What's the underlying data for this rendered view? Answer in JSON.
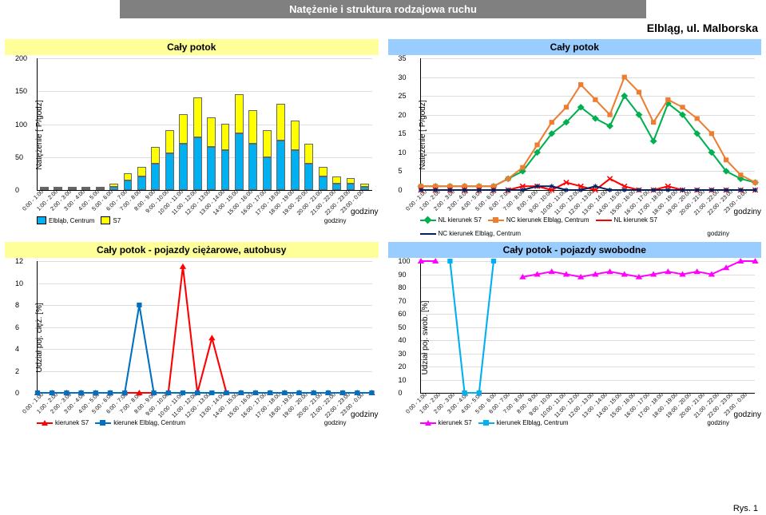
{
  "title": "Natężenie i struktura rodzajowa ruchu",
  "location": "Elbląg, ul. Malborska",
  "footer": "Rys. 1",
  "hours": [
    "0:00 - 1:00",
    "1:00 - 2:00",
    "2:00 - 3:00",
    "3:00 - 4:00",
    "4:00 - 5:00",
    "5:00 - 6:00",
    "6:00 - 7:00",
    "7:00 - 8:00",
    "8:00 - 9:00",
    "9:00 - 10:00",
    "10:00 - 11:00",
    "11:00 - 12:00",
    "12:00 - 13:00",
    "13:00 - 14:00",
    "14:00 - 15:00",
    "15:00 - 16:00",
    "16:00 - 17:00",
    "17:00 - 18:00",
    "18:00 - 19:00",
    "19:00 - 20:00",
    "20:00 - 21:00",
    "21:00 - 22:00",
    "22:00 - 23:00",
    "23:00 - 0:00"
  ],
  "tl": {
    "title": "Cały potok",
    "bg": "yellow",
    "ylabel": "Natężenie [ P/godz]",
    "xlabel": "godziny",
    "ymax": 200,
    "ytick": 50,
    "series": [
      {
        "name": "Elbląb, Centrum",
        "color": "#00b0f0",
        "data": [
          2,
          3,
          2,
          2,
          3,
          5,
          15,
          20,
          40,
          55,
          70,
          80,
          65,
          60,
          85,
          70,
          50,
          75,
          60,
          40,
          20,
          10,
          10,
          5
        ]
      },
      {
        "name": "S7",
        "color": "#ffff00",
        "data": [
          2,
          2,
          2,
          2,
          2,
          5,
          10,
          15,
          25,
          35,
          45,
          60,
          45,
          40,
          60,
          50,
          40,
          55,
          45,
          30,
          15,
          10,
          8,
          5
        ]
      }
    ]
  },
  "tr": {
    "title": "Cały potok",
    "bg": "blue",
    "ylabel": "Natężenie [ P/godz]",
    "xlabel": "godziny",
    "ymax": 35,
    "ytick": 5,
    "series": [
      {
        "name": "NL kierunek S7",
        "color": "#00b050",
        "marker": "diamond",
        "data": [
          1,
          1,
          1,
          1,
          1,
          1,
          3,
          5,
          10,
          15,
          18,
          22,
          19,
          17,
          25,
          20,
          13,
          23,
          20,
          15,
          10,
          5,
          3,
          2
        ]
      },
      {
        "name": "NC kierunek Elbląg, Centrum",
        "color": "#ed7d31",
        "marker": "square",
        "data": [
          1,
          1,
          1,
          1,
          1,
          1,
          3,
          6,
          12,
          18,
          22,
          28,
          24,
          20,
          30,
          26,
          18,
          24,
          22,
          19,
          15,
          8,
          4,
          2
        ]
      },
      {
        "name": "NL kierunek S7",
        "color": "#ff0000",
        "marker": "x",
        "data": [
          0,
          0,
          0,
          0,
          0,
          0,
          0,
          1,
          1,
          0,
          2,
          1,
          0,
          3,
          1,
          0,
          0,
          1,
          0,
          0,
          0,
          0,
          0,
          0
        ]
      },
      {
        "name": "NC kierunek Elbląg, Centrum",
        "color": "#002060",
        "marker": "star",
        "data": [
          0,
          0,
          0,
          0,
          0,
          0,
          0,
          0,
          1,
          1,
          0,
          0,
          1,
          0,
          0,
          0,
          0,
          0,
          0,
          0,
          0,
          0,
          0,
          0
        ]
      }
    ]
  },
  "bl": {
    "title": "Cały potok - pojazdy ciężarowe, autobusy",
    "bg": "yellow",
    "ylabel": "Udział poj. cięż. [%]",
    "xlabel": "godziny",
    "ymax": 12,
    "ytick": 2,
    "series": [
      {
        "name": "kierunek S7",
        "color": "#ff0000",
        "marker": "triangle",
        "data": [
          0,
          0,
          0,
          0,
          0,
          0,
          0,
          0,
          0,
          0,
          11.5,
          0,
          5,
          0,
          0,
          0,
          0,
          0,
          0,
          0,
          0,
          0,
          0,
          0
        ]
      },
      {
        "name": "kierunek Elbląg, Centrum",
        "color": "#0070c0",
        "marker": "square",
        "data": [
          0,
          0,
          0,
          0,
          0,
          0,
          0,
          8,
          0,
          0,
          0,
          0,
          0,
          0,
          0,
          0,
          0,
          0,
          0,
          0,
          0,
          0,
          0,
          0
        ]
      }
    ]
  },
  "br": {
    "title": "Cały potok - pojazdy swobodne",
    "bg": "blue",
    "ylabel": "Udział poj. swob. [%]",
    "xlabel": "godziny",
    "ymax": 100,
    "ytick": 10,
    "series": [
      {
        "name": "kierunek S7",
        "color": "#ff00ff",
        "marker": "triangle",
        "data": [
          100,
          100,
          null,
          null,
          null,
          null,
          null,
          88,
          90,
          92,
          90,
          88,
          90,
          92,
          90,
          88,
          90,
          92,
          90,
          92,
          90,
          95,
          100,
          100
        ]
      },
      {
        "name": "kierunek Elbląg, Centrum",
        "color": "#00b0f0",
        "marker": "square",
        "data": [
          null,
          null,
          100,
          0,
          0,
          100,
          null,
          null,
          null,
          null,
          null,
          null,
          null,
          null,
          null,
          null,
          null,
          null,
          null,
          null,
          null,
          null,
          null,
          null
        ]
      }
    ]
  }
}
